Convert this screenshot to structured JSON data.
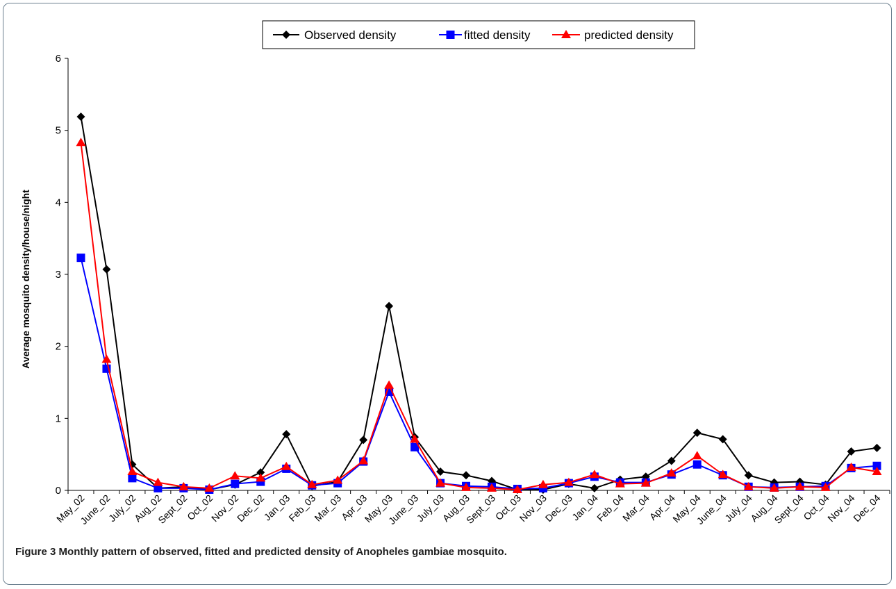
{
  "caption": {
    "label": "Figure 3",
    "text": "Monthly pattern of observed, fitted and predicted density of Anopheles gambiae mosquito."
  },
  "chart_data": {
    "type": "line",
    "ylabel": "Average mosquito density/house/night",
    "xlabel": "",
    "ylim": [
      0,
      6
    ],
    "yticks": [
      "0",
      "1",
      "2",
      "3",
      "4",
      "5",
      "6"
    ],
    "grid": false,
    "legend_position": "top-center",
    "categories": [
      "May_02",
      "June_02",
      "July_02",
      "Aug_02",
      "Sept_02",
      "Oct_02",
      "Nov_02",
      "Dec_02",
      "Jan_03",
      "Feb_03",
      "Mar_03",
      "Apr_03",
      "May_03",
      "June_03",
      "July_03",
      "Aug_03",
      "Sept_03",
      "Oct_03",
      "Nov_03",
      "Dec_03",
      "Jan_04",
      "Feb_04",
      "Mar_04",
      "Apr_04",
      "May_04",
      "June_04",
      "July_04",
      "Aug_04",
      "Sept_04",
      "Oct_04",
      "Nov_04",
      "Dec_04"
    ],
    "series": [
      {
        "name": "Observed density",
        "color": "#000000",
        "marker": "diamond",
        "values": [
          5.19,
          3.07,
          0.36,
          0.03,
          0.05,
          0.01,
          0.08,
          0.25,
          0.78,
          0.06,
          0.12,
          0.7,
          2.56,
          0.74,
          0.26,
          0.21,
          0.13,
          0.01,
          0.01,
          0.09,
          0.03,
          0.15,
          0.19,
          0.41,
          0.8,
          0.71,
          0.21,
          0.11,
          0.12,
          0.08,
          0.54,
          0.59
        ]
      },
      {
        "name": "fitted density",
        "color": "#0000ff",
        "marker": "square",
        "values": [
          3.23,
          1.69,
          0.17,
          0.03,
          0.03,
          0.01,
          0.09,
          0.12,
          0.3,
          0.07,
          0.1,
          0.4,
          1.37,
          0.6,
          0.1,
          0.06,
          0.05,
          0.02,
          0.03,
          0.1,
          0.19,
          0.11,
          0.11,
          0.22,
          0.36,
          0.21,
          0.05,
          0.04,
          0.05,
          0.06,
          0.31,
          0.34
        ]
      },
      {
        "name": "predicted density",
        "color": "#ff0000",
        "marker": "triangle",
        "values": [
          4.83,
          1.82,
          0.26,
          0.11,
          0.05,
          0.03,
          0.2,
          0.17,
          0.33,
          0.08,
          0.14,
          0.41,
          1.46,
          0.71,
          0.1,
          0.04,
          0.03,
          0.01,
          0.08,
          0.11,
          0.22,
          0.09,
          0.1,
          0.24,
          0.48,
          0.22,
          0.05,
          0.03,
          0.05,
          0.04,
          0.32,
          0.26
        ]
      }
    ]
  }
}
